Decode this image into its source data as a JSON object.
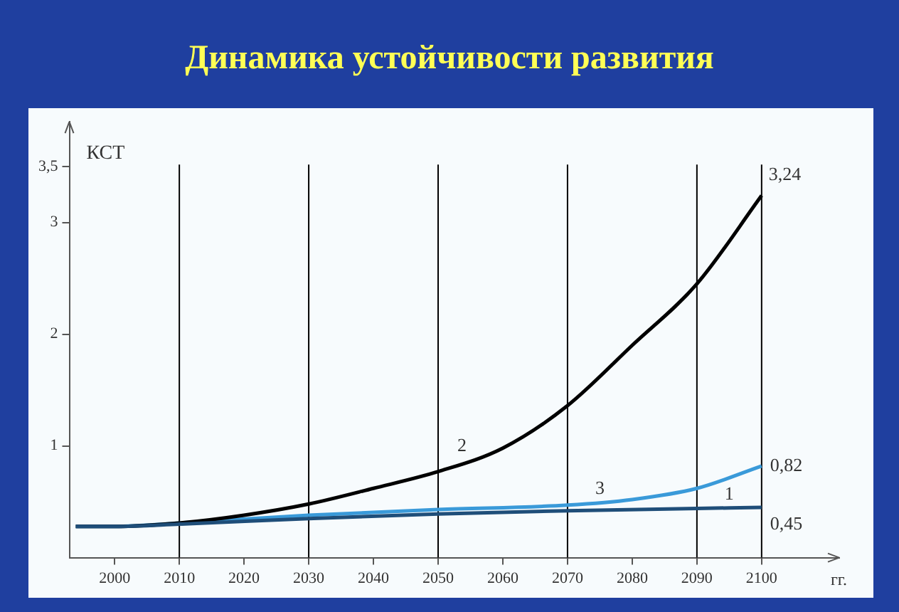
{
  "chart_data": {
    "type": "line",
    "title": "Динамика устойчивости развития",
    "ylabel": "КСТ",
    "xlabel": "гг.",
    "xlim": [
      1993,
      2112
    ],
    "ylim": [
      0,
      3.9
    ],
    "xticks": [
      2000,
      2010,
      2020,
      2030,
      2040,
      2050,
      2060,
      2070,
      2080,
      2090,
      2100
    ],
    "yticks": [
      1,
      2,
      3,
      {
        "value": 3.5,
        "label": "3,5"
      }
    ],
    "grid": false,
    "legend": false,
    "tick_labels": "xy",
    "marker": "none",
    "line_style": "solid",
    "series": [
      {
        "name": "1",
        "color": "#1f4e79",
        "x": [
          1994,
          2000,
          2010,
          2030,
          2050,
          2070,
          2090,
          2100
        ],
        "values": [
          0.28,
          0.28,
          0.3,
          0.35,
          0.39,
          0.42,
          0.44,
          0.45
        ],
        "value_labels": [
          null,
          null,
          null,
          null,
          null,
          null,
          null,
          "0,45"
        ]
      },
      {
        "name": "2",
        "color": "#000000",
        "x": [
          1994,
          2000,
          2010,
          2020,
          2030,
          2040,
          2050,
          2060,
          2070,
          2080,
          2090,
          2100
        ],
        "values": [
          0.28,
          0.28,
          0.31,
          0.38,
          0.48,
          0.62,
          0.77,
          0.98,
          1.36,
          1.9,
          2.45,
          3.24
        ],
        "value_labels": [
          null,
          null,
          null,
          null,
          null,
          null,
          null,
          null,
          null,
          null,
          null,
          "3,24"
        ]
      },
      {
        "name": "3",
        "color": "#3a9ad9",
        "x": [
          1994,
          2000,
          2010,
          2030,
          2050,
          2070,
          2080,
          2090,
          2100
        ],
        "values": [
          0.28,
          0.28,
          0.31,
          0.38,
          0.43,
          0.47,
          0.52,
          0.62,
          0.82
        ],
        "value_labels": [
          null,
          null,
          null,
          null,
          null,
          null,
          null,
          null,
          "0,82"
        ]
      }
    ],
    "ref_lines": [
      {
        "axis": "x",
        "value": 2010,
        "color": "#000000"
      },
      {
        "axis": "x",
        "value": 2030,
        "color": "#000000"
      },
      {
        "axis": "x",
        "value": 2050,
        "color": "#000000"
      },
      {
        "axis": "x",
        "value": 2070,
        "color": "#000000"
      },
      {
        "axis": "x",
        "value": 2090,
        "color": "#000000"
      },
      {
        "axis": "x",
        "value": 2100,
        "color": "#000000"
      }
    ]
  }
}
